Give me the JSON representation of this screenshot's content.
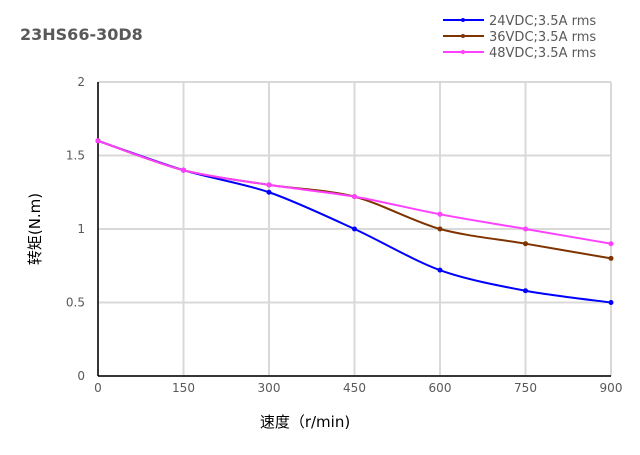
{
  "chart_data": {
    "type": "line",
    "title": "23HS66-30D8",
    "xlabel": "速度（r/min)",
    "ylabel": "转矩(N.m)",
    "x": [
      0,
      150,
      300,
      450,
      600,
      750,
      900
    ],
    "xlim": [
      0,
      900
    ],
    "ylim": [
      0,
      2
    ],
    "x_ticks": [
      "0",
      "150",
      "300",
      "450",
      "600",
      "750",
      "900"
    ],
    "y_ticks": [
      "0",
      "0.5",
      "1",
      "1.5",
      "2"
    ],
    "y_tick_values": [
      0,
      0.5,
      1,
      1.5,
      2
    ],
    "grid": true,
    "smooth": true,
    "legend_position": "top-right",
    "series": [
      {
        "name": "24VDC;3.5A rms",
        "color": "#0000ff",
        "values": [
          1.6,
          1.4,
          1.25,
          1.0,
          0.72,
          0.58,
          0.5
        ]
      },
      {
        "name": "36VDC;3.5A rms",
        "color": "#7f3300",
        "values": [
          1.6,
          1.4,
          1.3,
          1.22,
          1.0,
          0.9,
          0.8
        ]
      },
      {
        "name": "48VDC;3.5A rms",
        "color": "#ff40ff",
        "values": [
          1.6,
          1.4,
          1.3,
          1.22,
          1.1,
          1.0,
          0.9
        ]
      }
    ]
  }
}
